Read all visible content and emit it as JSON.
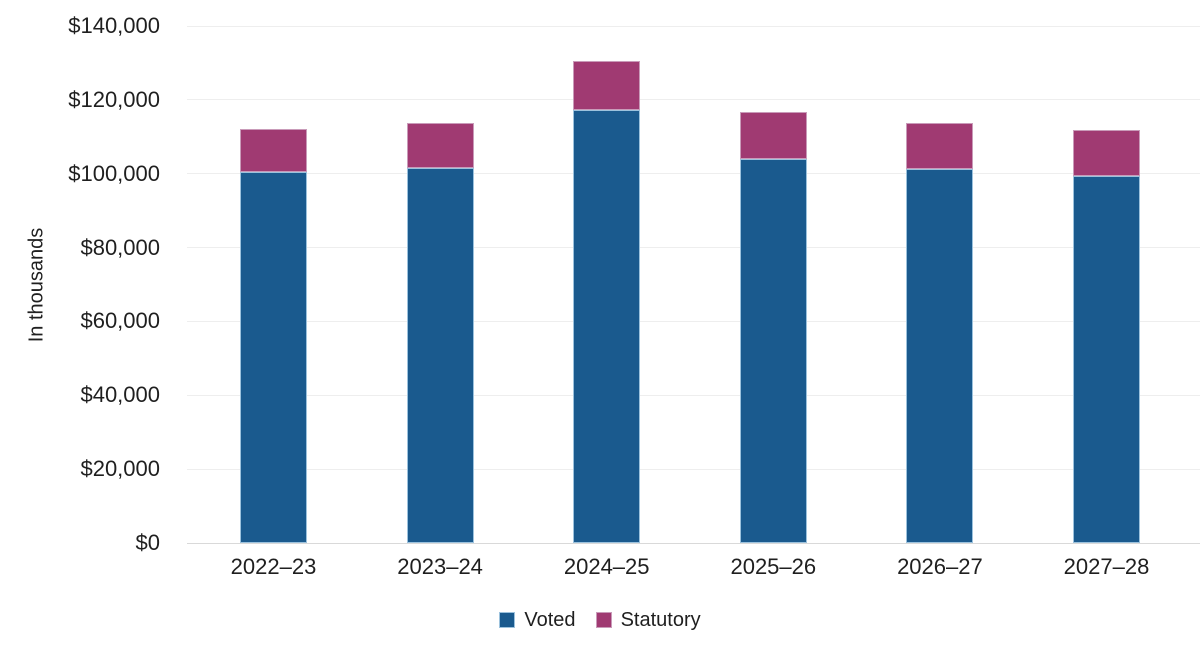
{
  "chart_data": {
    "type": "bar",
    "stacked": true,
    "title": "",
    "ylabel": "In thousands",
    "categories": [
      "2022–23",
      "2023–24",
      "2024–25",
      "2025–26",
      "2026–27",
      "2027–28"
    ],
    "series": [
      {
        "name": "Voted",
        "color": "#1A5A8E",
        "border_color": "#9CC2DD",
        "values": [
          100400,
          101500,
          117200,
          104000,
          101300,
          99400
        ]
      },
      {
        "name": "Statutory",
        "color": "#A03A72",
        "border_color": "#C99BB9",
        "values": [
          11800,
          12200,
          13300,
          12700,
          12400,
          12400
        ]
      }
    ],
    "totals": [
      112200,
      113700,
      130500,
      116700,
      113700,
      111800
    ],
    "ylim": [
      0,
      140000
    ],
    "yticks": [
      0,
      20000,
      40000,
      60000,
      80000,
      100000,
      120000,
      140000
    ],
    "ytick_labels": [
      "$0",
      "$20,000",
      "$40,000",
      "$60,000",
      "$80,000",
      "$100,000",
      "$120,000",
      "$140,000"
    ],
    "grid": true,
    "legend_position": "bottom",
    "colors": {
      "axis_text": "#1f1f1f",
      "gridline": "#eeeeee",
      "baseline": "#d9d9d9",
      "background": "#ffffff"
    }
  }
}
